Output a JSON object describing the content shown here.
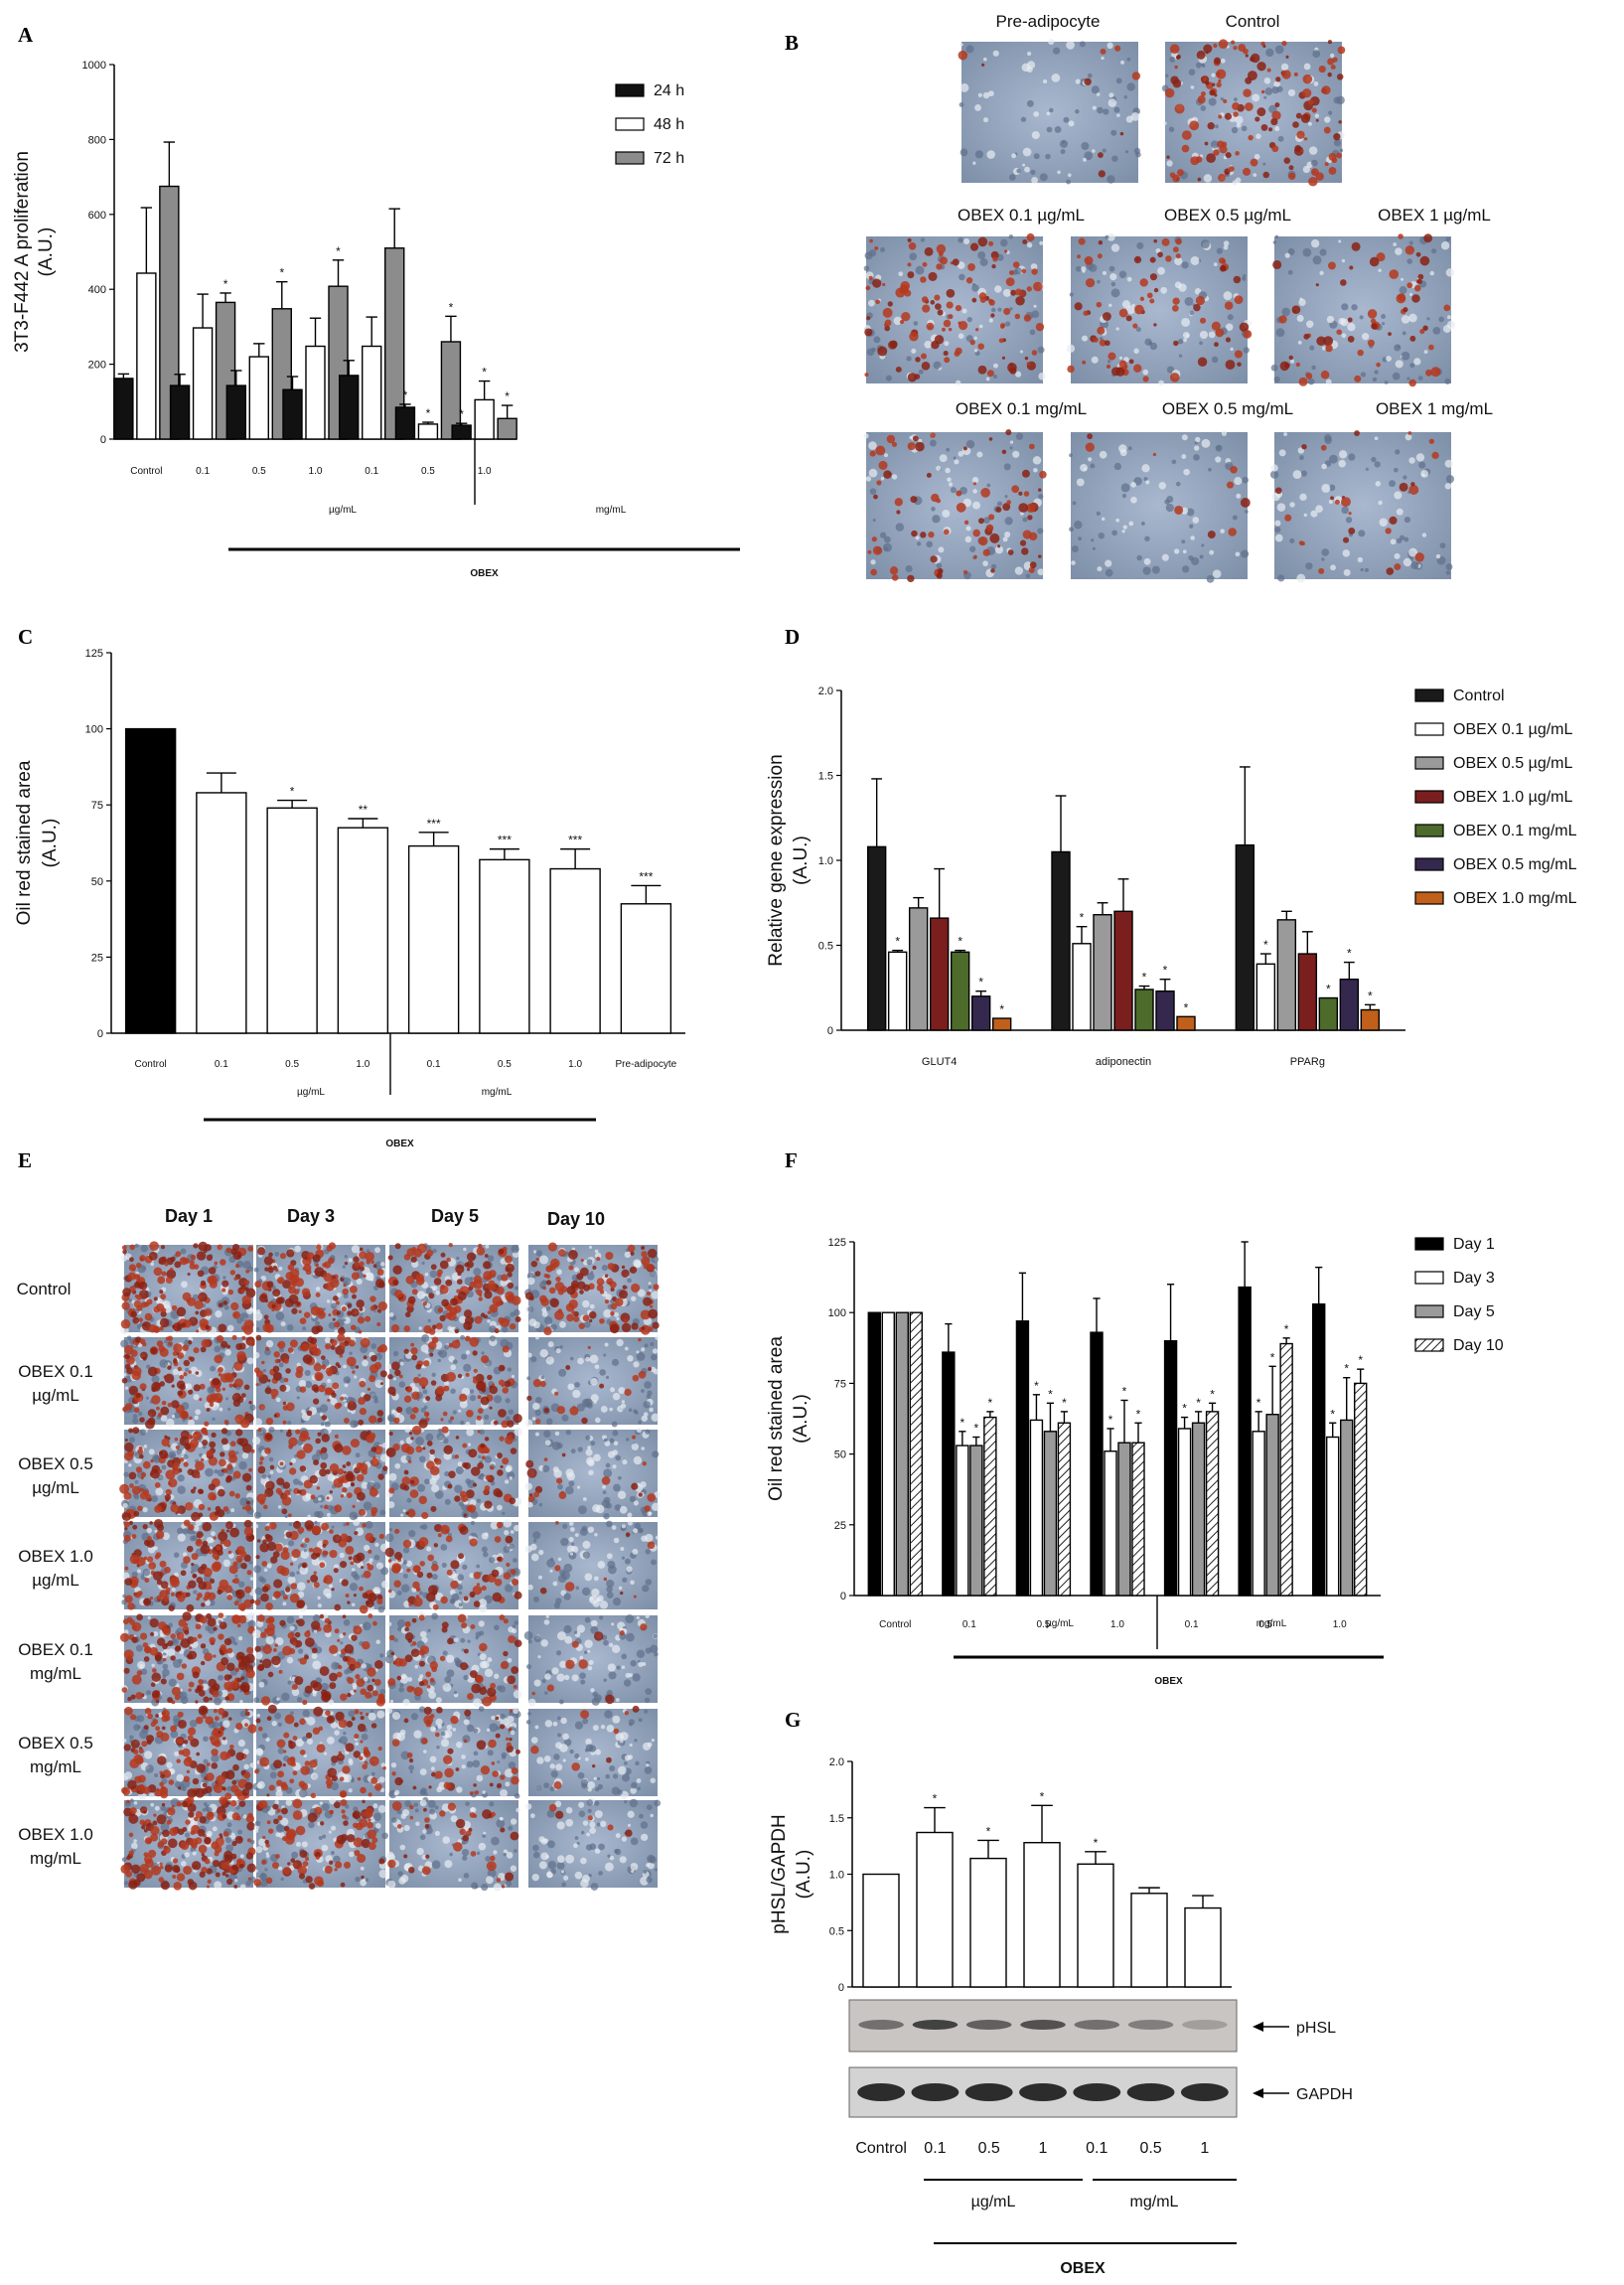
{
  "figure": {
    "panel_labels": [
      "A",
      "B",
      "C",
      "D",
      "E",
      "F",
      "G"
    ],
    "obex": "OBEX",
    "ugml": "µg/mL",
    "mgml": "mg/mL"
  },
  "chart_data": [
    {
      "id": "A",
      "type": "bar",
      "ylabel_1": "3T3-F442 A proliferation",
      "ylabel_2": "(A.U.)",
      "ylim": [
        0,
        1000
      ],
      "yticks": [
        "0",
        "200",
        "400",
        "600",
        "800",
        "1000"
      ],
      "categories": [
        "Control",
        "0.1",
        "0.5",
        "1.0",
        "0.1",
        "0.5",
        "1.0"
      ],
      "group_labels": [
        "µg/mL",
        "mg/mL"
      ],
      "series": [
        {
          "name": "24 h",
          "color": "#111111",
          "values": [
            162,
            143,
            143,
            132,
            170,
            85,
            37
          ],
          "errors": [
            12,
            30,
            40,
            35,
            40,
            8,
            5
          ],
          "stars": [
            "",
            "",
            "",
            "",
            "",
            "*",
            "*"
          ]
        },
        {
          "name": "48 h",
          "color": "#ffffff",
          "values": [
            443,
            297,
            220,
            248,
            248,
            40,
            105
          ],
          "errors": [
            175,
            90,
            35,
            75,
            78,
            5,
            50
          ],
          "stars": [
            "",
            "",
            "",
            "",
            "",
            "*",
            "*"
          ]
        },
        {
          "name": "72 h",
          "color": "#8c8c8c",
          "values": [
            675,
            365,
            348,
            408,
            510,
            260,
            55
          ],
          "errors": [
            118,
            25,
            72,
            70,
            105,
            68,
            35
          ],
          "stars": [
            "",
            "*",
            "*",
            "*",
            "",
            "*",
            "*"
          ]
        }
      ],
      "obex_label": "OBEX"
    },
    {
      "id": "C",
      "type": "bar",
      "ylabel_1": "Oil red stained area",
      "ylabel_2": "(A.U.)",
      "ylim": [
        0,
        125
      ],
      "yticks": [
        "0",
        "25",
        "50",
        "75",
        "100",
        "125"
      ],
      "categories": [
        "Control",
        "0.1",
        "0.5",
        "1.0",
        "0.1",
        "0.5",
        "1.0",
        "Pre-adipocyte"
      ],
      "values": [
        100,
        79,
        74,
        67.5,
        61.5,
        57,
        54,
        42.5
      ],
      "errors": [
        0,
        6.5,
        2.5,
        3,
        4.5,
        3.5,
        6.5,
        6
      ],
      "colors": [
        "#000000",
        "#ffffff",
        "#ffffff",
        "#ffffff",
        "#ffffff",
        "#ffffff",
        "#ffffff",
        "#ffffff"
      ],
      "stars": [
        "",
        "",
        "*",
        "**",
        "***",
        "***",
        "***",
        "***"
      ],
      "group_labels": [
        "µg/mL",
        "mg/mL"
      ],
      "obex_label": "OBEX"
    },
    {
      "id": "D",
      "type": "bar",
      "ylabel_1": "Relative gene expression",
      "ylabel_2": "(A.U.)",
      "ylim": [
        0,
        2.0
      ],
      "yticks": [
        "0",
        "0.5",
        "1.0",
        "1.5",
        "2.0"
      ],
      "categories": [
        "GLUT4",
        "adiponectin",
        "PPARg"
      ],
      "series": [
        {
          "name": "Control",
          "color": "#1a1a1a",
          "values": [
            1.08,
            1.05,
            1.09
          ],
          "errors": [
            0.4,
            0.33,
            0.46
          ],
          "stars": [
            "",
            "",
            ""
          ]
        },
        {
          "name": "OBEX  0.1  µg/mL",
          "color": "#ffffff",
          "values": [
            0.46,
            0.51,
            0.39
          ],
          "errors": [
            0.01,
            0.1,
            0.06
          ],
          "stars": [
            "*",
            "*",
            "*"
          ]
        },
        {
          "name": "OBEX  0.5  µg/mL",
          "color": "#9a9a9a",
          "values": [
            0.72,
            0.68,
            0.65
          ],
          "errors": [
            0.06,
            0.07,
            0.05
          ],
          "stars": [
            "",
            "",
            ""
          ]
        },
        {
          "name": "OBEX  1.0  µg/mL",
          "color": "#7a1e1e",
          "values": [
            0.66,
            0.7,
            0.45
          ],
          "errors": [
            0.29,
            0.19,
            0.13
          ],
          "stars": [
            "",
            "",
            ""
          ]
        },
        {
          "name": "OBEX  0.1 mg/mL",
          "color": "#4d6b2a",
          "values": [
            0.46,
            0.24,
            0.19
          ],
          "errors": [
            0.01,
            0.02,
            0.0
          ],
          "stars": [
            "*",
            "*",
            "*"
          ]
        },
        {
          "name": "OBEX  0.5 mg/mL",
          "color": "#35284f",
          "values": [
            0.2,
            0.23,
            0.3
          ],
          "errors": [
            0.03,
            0.07,
            0.1
          ],
          "stars": [
            "*",
            "*",
            "*"
          ]
        },
        {
          "name": "OBEX  1.0 mg/mL",
          "color": "#c0601a",
          "values": [
            0.07,
            0.08,
            0.12
          ],
          "errors": [
            0.0,
            0.0,
            0.03
          ],
          "stars": [
            "*",
            "*",
            "*"
          ]
        }
      ]
    },
    {
      "id": "F",
      "type": "bar",
      "ylabel_1": "Oil red stained area",
      "ylabel_2": "(A.U.)",
      "ylim": [
        0,
        125
      ],
      "yticks": [
        "0",
        "25",
        "50",
        "75",
        "100",
        "125"
      ],
      "categories": [
        "Control",
        "0.1",
        "0.5",
        "1.0",
        "0.1",
        "0.5",
        "1.0"
      ],
      "group_labels": [
        "µg/mL",
        "mg/mL"
      ],
      "series": [
        {
          "name": "Day  1",
          "color": "#000000",
          "values": [
            100,
            86,
            97,
            93,
            90,
            109,
            103
          ],
          "errors": [
            0,
            10,
            17,
            12,
            20,
            16,
            13
          ],
          "stars": [
            "",
            "",
            "",
            "",
            "",
            "",
            ""
          ]
        },
        {
          "name": "Day  3",
          "color": "#ffffff",
          "values": [
            100,
            53,
            62,
            51,
            59,
            58,
            56
          ],
          "errors": [
            0,
            5,
            9,
            8,
            4,
            7,
            5
          ],
          "stars": [
            "",
            "*",
            "*",
            "*",
            "*",
            "*",
            "*"
          ]
        },
        {
          "name": "Day  5",
          "color": "#9a9a9a",
          "values": [
            100,
            53,
            58,
            54,
            61,
            64,
            62
          ],
          "errors": [
            0,
            3,
            10,
            15,
            4,
            17,
            15
          ],
          "stars": [
            "",
            "*",
            "*",
            "*",
            "*",
            "*",
            "*"
          ]
        },
        {
          "name": "Day  10",
          "color": "#d9d9d9",
          "pattern": "hatch",
          "values": [
            100,
            63,
            61,
            54,
            65,
            89,
            75
          ],
          "errors": [
            0,
            2,
            4,
            7,
            3,
            2,
            5
          ],
          "stars": [
            "",
            "*",
            "*",
            "*",
            "*",
            "*",
            "*"
          ]
        }
      ],
      "obex_label": "OBEX"
    },
    {
      "id": "G",
      "type": "bar",
      "ylabel_1": "pHSL/GAPDH",
      "ylabel_2": "(A.U.)",
      "ylim": [
        0,
        2.0
      ],
      "yticks": [
        "0",
        "0.5",
        "1.0",
        "1.5",
        "2.0"
      ],
      "categories": [
        "Control",
        "0.1",
        "0.5",
        "1",
        "0.1",
        "0.5",
        "1"
      ],
      "values": [
        1.0,
        1.37,
        1.14,
        1.28,
        1.09,
        0.83,
        0.7
      ],
      "errors": [
        0,
        0.22,
        0.16,
        0.33,
        0.11,
        0.05,
        0.11
      ],
      "stars": [
        "",
        "*",
        "*",
        "*",
        "*",
        "",
        ""
      ],
      "blot_labels": [
        "pHSL",
        "GAPDH"
      ],
      "group_labels": [
        "µg/mL",
        "mg/mL"
      ],
      "obex_label": "OBEX"
    }
  ],
  "panel_B": {
    "top": [
      "Pre-adipocyte",
      "Control"
    ],
    "row1": [
      "OBEX 0.1 µg/mL",
      "OBEX 0.5 µg/mL",
      "OBEX 1 µg/mL"
    ],
    "row2": [
      "OBEX 0.1 mg/mL",
      "OBEX 0.5 mg/mL",
      "OBEX 1 mg/mL"
    ]
  },
  "panel_E": {
    "days": [
      "Day 1",
      "Day 3",
      "Day 5",
      "Day 10"
    ],
    "rows": [
      {
        "l1": "Control",
        "l2": ""
      },
      {
        "l1": "OBEX 0.1",
        "l2": "µg/mL"
      },
      {
        "l1": "OBEX 0.5",
        "l2": "µg/mL"
      },
      {
        "l1": "OBEX 1.0",
        "l2": "µg/mL"
      },
      {
        "l1": "OBEX 0.1",
        "l2": "mg/mL"
      },
      {
        "l1": "OBEX 0.5",
        "l2": "mg/mL"
      },
      {
        "l1": "OBEX 1.0",
        "l2": "mg/mL"
      }
    ]
  }
}
